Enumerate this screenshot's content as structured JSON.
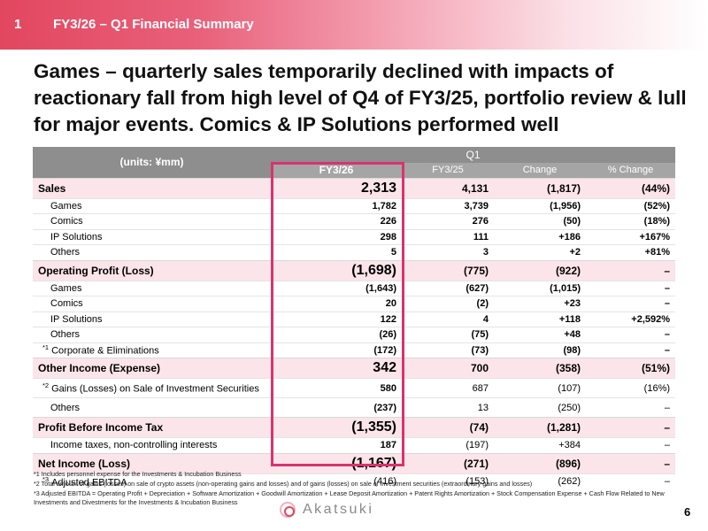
{
  "header": {
    "number": "1",
    "title": "FY3/26 – Q1 Financial Summary"
  },
  "headline": "Games – quarterly sales temporarily declined with impacts of reactionary fall from high level of Q4 of FY3/25,  portfolio review & lull for major events. Comics & IP Solutions performed well",
  "table": {
    "units": "(units:  ¥mm)",
    "period": "Q1",
    "columns": [
      "FY3/26",
      "FY3/25",
      "Change",
      "% Change"
    ],
    "sales": {
      "label": "Sales",
      "values": [
        "2,313",
        "4,131",
        "(1,817)",
        "(44%)"
      ],
      "rows": [
        {
          "label": "Games",
          "values": [
            "1,782",
            "3,739",
            "(1,956)",
            "(52%)"
          ]
        },
        {
          "label": "Comics",
          "values": [
            "226",
            "276",
            "(50)",
            "(18%)"
          ]
        },
        {
          "label": "IP Solutions",
          "values": [
            "298",
            "111",
            "+186",
            "+167%"
          ]
        },
        {
          "label": "Others",
          "values": [
            "5",
            "3",
            "+2",
            "+81%"
          ]
        }
      ]
    },
    "operating_profit": {
      "label": "Operating Profit (Loss)",
      "values": [
        "(1,698)",
        "(775)",
        "(922)",
        "–"
      ],
      "rows": [
        {
          "label": "Games",
          "values": [
            "(1,643)",
            "(627)",
            "(1,015)",
            "–"
          ]
        },
        {
          "label": "Comics",
          "values": [
            "20",
            "(2)",
            "+23",
            "–"
          ]
        },
        {
          "label": "IP Solutions",
          "values": [
            "122",
            "4",
            "+118",
            "+2,592%"
          ]
        },
        {
          "label": "Others",
          "values": [
            "(26)",
            "(75)",
            "+48",
            "–"
          ]
        },
        {
          "mark": "*1",
          "label": "Corporate & Eliminations",
          "values": [
            "(172)",
            "(73)",
            "(98)",
            "–"
          ]
        }
      ]
    },
    "other_income": {
      "label": "Other Income (Expense)",
      "values": [
        "342",
        "700",
        "(358)",
        "(51%)"
      ],
      "rows": [
        {
          "mark": "*2",
          "label": "Gains (Losses) on Sale of Investment Securities",
          "values": [
            "580",
            "687",
            "(107)",
            "(16%)"
          ]
        },
        {
          "label": "Others",
          "values": [
            "(237)",
            "13",
            "(250)",
            "–"
          ]
        }
      ]
    },
    "profit_before_tax": {
      "label": "Profit Before Income Tax",
      "values": [
        "(1,355)",
        "(74)",
        "(1,281)",
        "–"
      ],
      "rows": [
        {
          "label": "Income taxes, non-controlling interests",
          "values": [
            "187",
            "(197)",
            "+384",
            "–"
          ]
        }
      ]
    },
    "net_income": {
      "label": "Net Income (Loss)",
      "values": [
        "(1,167)",
        "(271)",
        "(896)",
        "–"
      ],
      "rows": [
        {
          "mark": "*3",
          "label": "Adjusted EBITDA",
          "values": [
            "(416)",
            "(153)",
            "(262)",
            "–"
          ]
        }
      ]
    }
  },
  "footnotes": [
    "*1 Includes personnel expense for the Investments & Incubation Business",
    "*2 Total amount of gains (losses) on sale of crypto assets (non-operating gains and losses) and of gains (losses) on sale of investment securities (extraordinary gains and losses)",
    "*3 Adjusted EBITDA = Operating Profit + Depreciation + Software Amortization + Goodwill Amortization + Lease Deposit Amortization + Patent Rights Amortization + Stock Compensation Expense + Cash Flow Related to New Investments and Divestments for the Investments & Incubation Business"
  ],
  "logo_text": "Akatsuki",
  "page_number": "6",
  "colors": {
    "accent": "#e2475f",
    "highlight_border": "#d9336e",
    "row_tint": "#fbe5ea",
    "header_gray": "#8e8e8e"
  }
}
